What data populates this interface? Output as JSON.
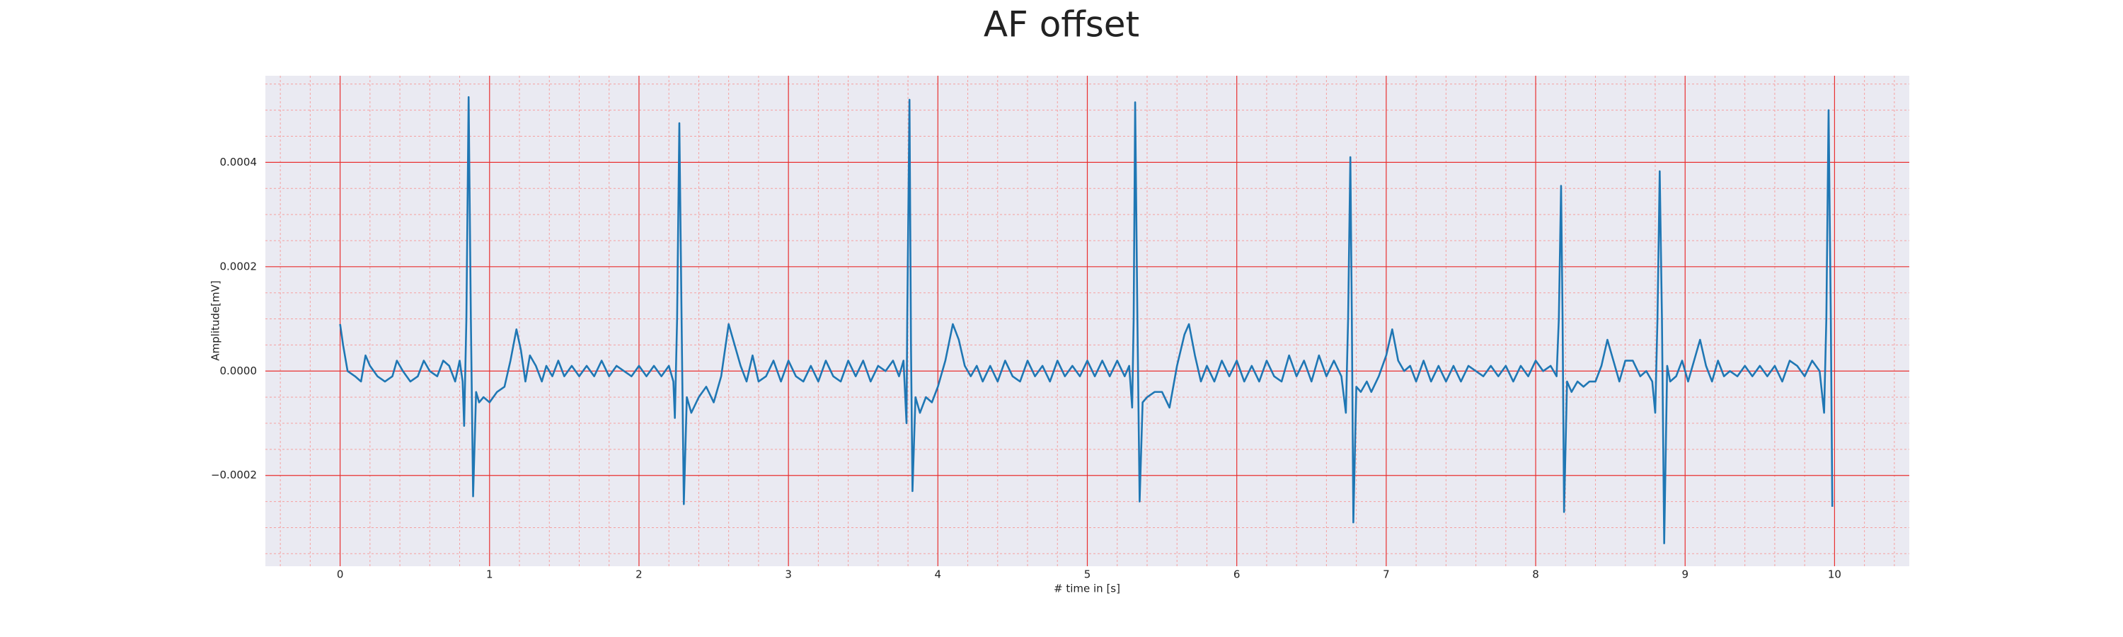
{
  "chart_data": {
    "type": "line",
    "title": "AF offset",
    "xlabel": "# time in [s]",
    "ylabel": "Amplitude[mV]",
    "color": "#1f77b4",
    "grid": true,
    "minor_grid": true,
    "xlim": [
      -0.5,
      10.5
    ],
    "ylim": [
      -0.000374,
      0.000566
    ],
    "xticks": [
      0,
      1,
      2,
      3,
      4,
      5,
      6,
      7,
      8,
      9,
      10
    ],
    "yticks": [
      {
        "value": -0.0002,
        "label": "−0.0002"
      },
      {
        "value": 0,
        "label": "0.0000"
      },
      0.0002,
      0.0004
    ],
    "x": [
      0,
      0.02,
      0.05,
      0.1,
      0.14,
      0.17,
      0.2,
      0.25,
      0.3,
      0.35,
      0.38,
      0.42,
      0.47,
      0.52,
      0.56,
      0.6,
      0.65,
      0.69,
      0.73,
      0.77,
      0.8,
      0.82,
      0.83,
      0.845,
      0.86,
      0.875,
      0.89,
      0.91,
      0.93,
      0.96,
      1.0,
      1.05,
      1.1,
      1.14,
      1.18,
      1.21,
      1.24,
      1.27,
      1.31,
      1.35,
      1.38,
      1.42,
      1.46,
      1.5,
      1.55,
      1.6,
      1.65,
      1.7,
      1.75,
      1.8,
      1.85,
      1.9,
      1.95,
      2.0,
      2.05,
      2.1,
      2.15,
      2.2,
      2.23,
      2.24,
      2.255,
      2.27,
      2.285,
      2.3,
      2.32,
      2.35,
      2.4,
      2.45,
      2.5,
      2.55,
      2.6,
      2.64,
      2.68,
      2.72,
      2.76,
      2.8,
      2.85,
      2.9,
      2.95,
      3.0,
      3.05,
      3.1,
      3.15,
      3.2,
      3.25,
      3.3,
      3.35,
      3.4,
      3.45,
      3.5,
      3.55,
      3.6,
      3.65,
      3.7,
      3.74,
      3.77,
      3.79,
      3.795,
      3.81,
      3.82,
      3.83,
      3.85,
      3.88,
      3.92,
      3.96,
      4.0,
      4.05,
      4.1,
      4.14,
      4.18,
      4.22,
      4.26,
      4.3,
      4.35,
      4.4,
      4.45,
      4.5,
      4.55,
      4.6,
      4.65,
      4.7,
      4.75,
      4.8,
      4.85,
      4.9,
      4.95,
      5.0,
      5.05,
      5.1,
      5.15,
      5.2,
      5.25,
      5.28,
      5.3,
      5.31,
      5.32,
      5.335,
      5.35,
      5.37,
      5.4,
      5.45,
      5.5,
      5.55,
      5.6,
      5.65,
      5.68,
      5.72,
      5.76,
      5.8,
      5.85,
      5.9,
      5.95,
      6.0,
      6.05,
      6.1,
      6.15,
      6.2,
      6.25,
      6.3,
      6.35,
      6.4,
      6.45,
      6.5,
      6.55,
      6.6,
      6.65,
      6.7,
      6.73,
      6.745,
      6.76,
      6.77,
      6.78,
      6.8,
      6.83,
      6.87,
      6.9,
      6.95,
      7.0,
      7.04,
      7.08,
      7.12,
      7.16,
      7.2,
      7.25,
      7.3,
      7.35,
      7.4,
      7.45,
      7.5,
      7.55,
      7.6,
      7.65,
      7.7,
      7.75,
      7.8,
      7.85,
      7.9,
      7.95,
      8.0,
      8.05,
      8.1,
      8.14,
      8.155,
      8.17,
      8.18,
      8.19,
      8.21,
      8.24,
      8.28,
      8.32,
      8.36,
      8.4,
      8.44,
      8.48,
      8.52,
      8.56,
      8.6,
      8.65,
      8.7,
      8.74,
      8.78,
      8.8,
      8.815,
      8.83,
      8.845,
      8.86,
      8.88,
      8.9,
      8.94,
      8.98,
      9.02,
      9.06,
      9.1,
      9.14,
      9.18,
      9.22,
      9.26,
      9.3,
      9.35,
      9.4,
      9.45,
      9.5,
      9.55,
      9.6,
      9.65,
      9.7,
      9.75,
      9.8,
      9.85,
      9.9,
      9.93,
      9.945,
      9.96,
      9.975,
      9.985
    ],
    "values": [
      9e-05,
      5e-05,
      0,
      -1e-05,
      -2e-05,
      3e-05,
      1e-05,
      -1e-05,
      -2e-05,
      -1e-05,
      2e-05,
      0,
      -2e-05,
      -1e-05,
      2e-05,
      0,
      -1e-05,
      2e-05,
      1e-05,
      -2e-05,
      2e-05,
      -2e-05,
      -0.000105,
      0.0001,
      0.000525,
      0.0001,
      -0.00024,
      -4e-05,
      -6e-05,
      -5e-05,
      -6e-05,
      -4e-05,
      -3e-05,
      2e-05,
      8e-05,
      4e-05,
      -2e-05,
      3e-05,
      1e-05,
      -2e-05,
      1e-05,
      -1e-05,
      2e-05,
      -1e-05,
      1e-05,
      -1e-05,
      1e-05,
      -1e-05,
      2e-05,
      -1e-05,
      1e-05,
      0,
      -1e-05,
      1e-05,
      -1e-05,
      1e-05,
      -1e-05,
      1e-05,
      -2e-05,
      -9e-05,
      0.0001,
      0.000475,
      0.0001,
      -0.000255,
      -5e-05,
      -8e-05,
      -5e-05,
      -3e-05,
      -6e-05,
      -1e-05,
      9e-05,
      5e-05,
      1e-05,
      -2e-05,
      3e-05,
      -2e-05,
      -1e-05,
      2e-05,
      -2e-05,
      2e-05,
      -1e-05,
      -2e-05,
      1e-05,
      -2e-05,
      2e-05,
      -1e-05,
      -2e-05,
      2e-05,
      -1e-05,
      2e-05,
      -2e-05,
      1e-05,
      0,
      2e-05,
      -1e-05,
      2e-05,
      -0.0001,
      0.0001,
      0.00052,
      5e-05,
      -0.00023,
      -5e-05,
      -8e-05,
      -5e-05,
      -6e-05,
      -3e-05,
      2e-05,
      9e-05,
      6e-05,
      1e-05,
      -1e-05,
      1e-05,
      -2e-05,
      1e-05,
      -2e-05,
      2e-05,
      -1e-05,
      -2e-05,
      2e-05,
      -1e-05,
      1e-05,
      -2e-05,
      2e-05,
      -1e-05,
      1e-05,
      -1e-05,
      2e-05,
      -1e-05,
      2e-05,
      -1e-05,
      2e-05,
      -1e-05,
      1e-05,
      -7e-05,
      0.0001,
      0.000515,
      0.0001,
      -0.00025,
      -6e-05,
      -5e-05,
      -4e-05,
      -4e-05,
      -7e-05,
      1e-05,
      7e-05,
      9e-05,
      3e-05,
      -2e-05,
      1e-05,
      -2e-05,
      2e-05,
      -1e-05,
      2e-05,
      -2e-05,
      1e-05,
      -2e-05,
      2e-05,
      -1e-05,
      -2e-05,
      3e-05,
      -1e-05,
      2e-05,
      -2e-05,
      3e-05,
      -1e-05,
      2e-05,
      -1e-05,
      -8e-05,
      0.0001,
      0.00041,
      0.0001,
      -0.00029,
      -3e-05,
      -4e-05,
      -2e-05,
      -4e-05,
      -1e-05,
      3e-05,
      8e-05,
      2e-05,
      0,
      1e-05,
      -2e-05,
      2e-05,
      -2e-05,
      1e-05,
      -2e-05,
      1e-05,
      -2e-05,
      1e-05,
      0,
      -1e-05,
      1e-05,
      -1e-05,
      1e-05,
      -2e-05,
      1e-05,
      -1e-05,
      2e-05,
      0,
      1e-05,
      -1e-05,
      0.0001,
      0.000355,
      0.0001,
      -0.00027,
      -2e-05,
      -4e-05,
      -2e-05,
      -3e-05,
      -2e-05,
      -2e-05,
      1e-05,
      6e-05,
      2e-05,
      -2e-05,
      2e-05,
      2e-05,
      -1e-05,
      0,
      -2e-05,
      -8e-05,
      0.0001,
      0.000383,
      0.0001,
      -0.00033,
      1e-05,
      -2e-05,
      -1e-05,
      2e-05,
      -2e-05,
      2e-05,
      6e-05,
      1e-05,
      -2e-05,
      2e-05,
      -1e-05,
      0,
      -1e-05,
      1e-05,
      -1e-05,
      1e-05,
      -1e-05,
      1e-05,
      -2e-05,
      2e-05,
      1e-05,
      -1e-05,
      2e-05,
      0,
      -8e-05,
      0.0001,
      0.0005,
      0.0001,
      -0.00026
    ]
  }
}
